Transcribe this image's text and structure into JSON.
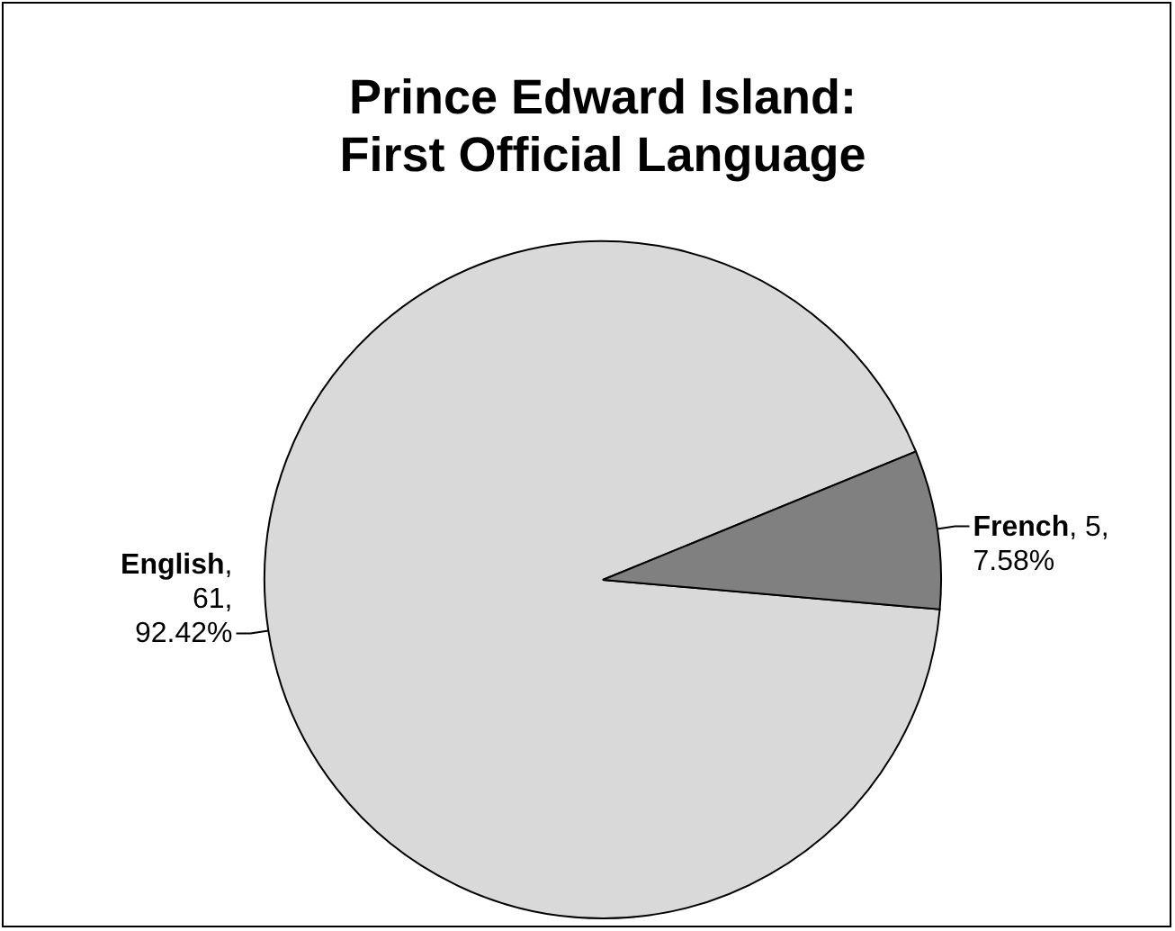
{
  "chart_data": {
    "type": "pie",
    "title": "Prince Edward Island: First Official Language",
    "categories": [
      "English",
      "French"
    ],
    "values": [
      61,
      5
    ],
    "colors": [
      "#d9d9d9",
      "#808080"
    ],
    "value_labels": [
      ", 61, 92.42%",
      ", 5, 7.58%"
    ]
  }
}
